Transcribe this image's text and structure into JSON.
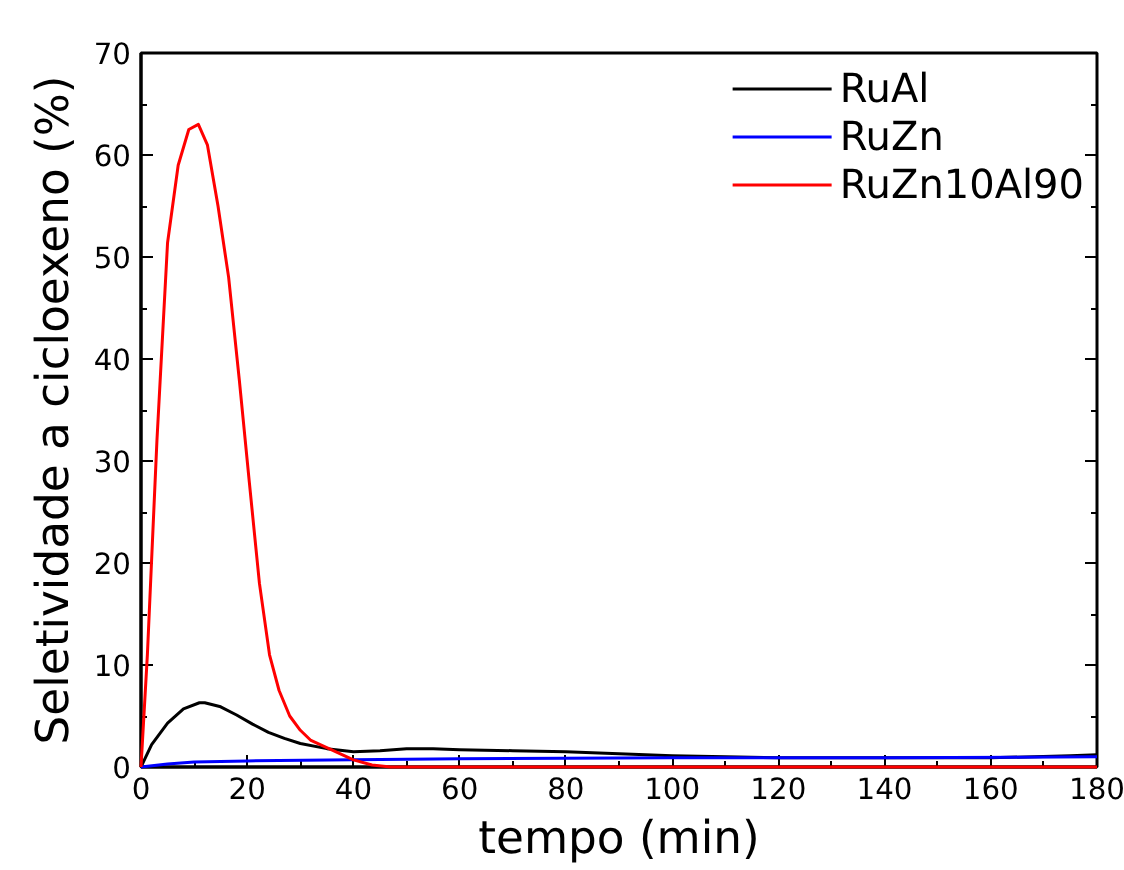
{
  "chart_data": {
    "type": "line",
    "xlabel": "tempo (min)",
    "ylabel": "Seletividade a cicloexeno (%)",
    "xlim": [
      0,
      180
    ],
    "ylim": [
      0,
      70
    ],
    "xticks": [
      0,
      20,
      40,
      60,
      80,
      100,
      120,
      140,
      160,
      180
    ],
    "yticks": [
      0,
      10,
      20,
      30,
      40,
      50,
      60,
      70
    ],
    "grid": false,
    "legend": "top right",
    "marker": "none",
    "line_style": "solid",
    "series": [
      {
        "name": "RuAl",
        "color": "#000000",
        "x": [
          0,
          2,
          5,
          8,
          11,
          12,
          15,
          18,
          21,
          24,
          27,
          30,
          35,
          40,
          45,
          50,
          55,
          60,
          70,
          80,
          90,
          100,
          110,
          120,
          140,
          160,
          175,
          180
        ],
        "values": [
          0,
          2.2,
          4.3,
          5.7,
          6.3,
          6.3,
          5.9,
          5.1,
          4.2,
          3.4,
          2.8,
          2.3,
          1.8,
          1.5,
          1.6,
          1.8,
          1.8,
          1.7,
          1.6,
          1.5,
          1.3,
          1.1,
          1.0,
          0.9,
          0.9,
          0.9,
          1.1,
          1.2
        ]
      },
      {
        "name": "RuZn",
        "color": "#0000ff",
        "x": [
          0,
          5,
          10,
          20,
          40,
          60,
          100,
          140,
          180
        ],
        "values": [
          0,
          0.3,
          0.5,
          0.6,
          0.7,
          0.8,
          0.9,
          0.9,
          1.0
        ]
      },
      {
        "name": "RuZn10Al90",
        "color": "#ff0000",
        "x": [
          0,
          1.2,
          3,
          5,
          7,
          9,
          10.8,
          12.5,
          14.5,
          16.5,
          18.5,
          20.4,
          22.3,
          24.2,
          26,
          28,
          30,
          32,
          35.8,
          40,
          43.5,
          47,
          60,
          100,
          180
        ],
        "values": [
          0,
          11,
          32,
          51.4,
          59,
          62.5,
          63,
          61,
          55,
          48,
          38,
          27.9,
          18,
          11,
          7.5,
          5,
          3.6,
          2.6,
          1.7,
          0.7,
          0.2,
          0,
          0,
          0,
          0
        ]
      }
    ]
  }
}
